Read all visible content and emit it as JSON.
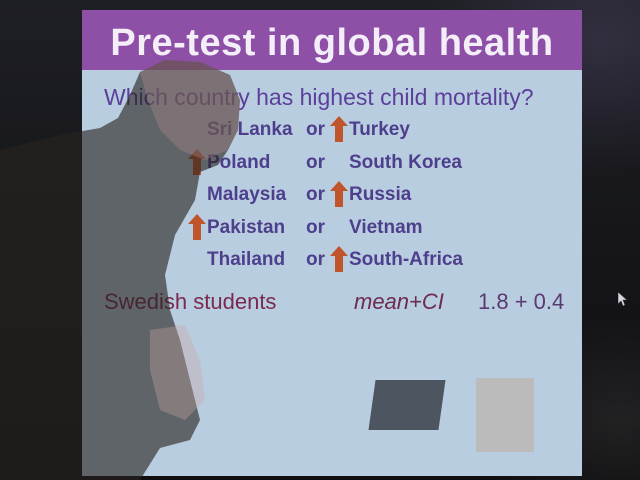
{
  "slide": {
    "title": "Pre-test in global health",
    "question": "Which country has highest child mortality?",
    "rows": [
      {
        "left": "Sri Lanka",
        "connector": "or",
        "right": "Turkey",
        "arrow_on": "right"
      },
      {
        "left": "Poland",
        "connector": "or",
        "right": "South Korea",
        "arrow_on": "left"
      },
      {
        "left": "Malaysia",
        "connector": "or",
        "right": "Russia",
        "arrow_on": "right"
      },
      {
        "left": "Pakistan",
        "connector": "or",
        "right": "Vietnam",
        "arrow_on": "left"
      },
      {
        "left": "Thailand",
        "connector": "or",
        "right": "South-Africa",
        "arrow_on": "right"
      }
    ],
    "result": {
      "group": "Swedish students",
      "metric": "mean+CI",
      "value": "1.8 + 0.4"
    }
  },
  "colors": {
    "title_bar": "#8e4fa6",
    "slide_background": "#b9cde0",
    "arrow": "#c0552b",
    "result_text": "#7a2a4f"
  },
  "icons": {
    "up_arrow": "up-arrow-icon",
    "cursor": "mouse-pointer-icon"
  }
}
